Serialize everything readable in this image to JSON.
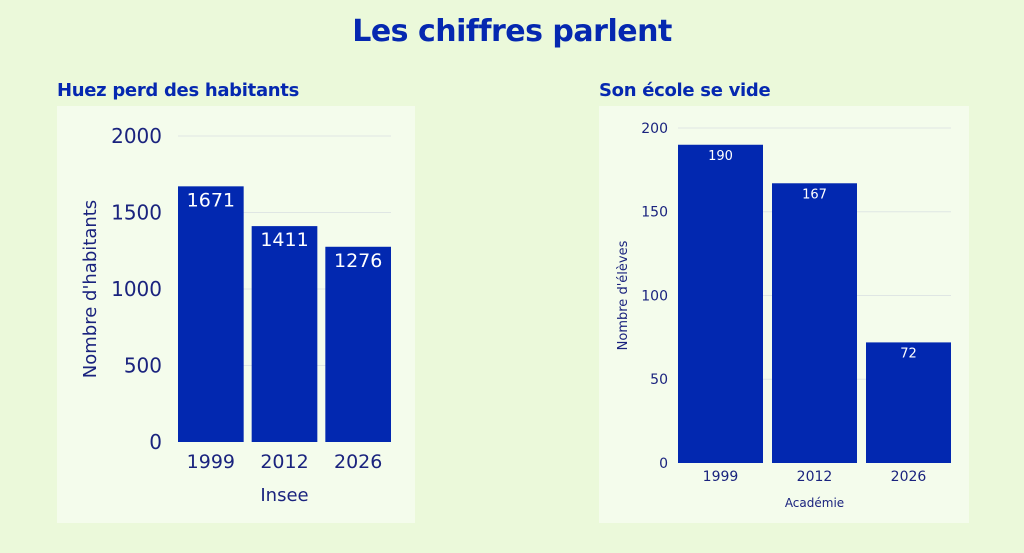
{
  "title": "Les chiffres parlent",
  "colors": {
    "bar": "#0228b0",
    "title": "#0528b0",
    "axis_text": "#1a237e",
    "panel": "#f4fcec",
    "background": "#ebf9da",
    "grid": "#dfe6e4"
  },
  "chart_data": [
    {
      "type": "bar",
      "title": "Huez perd des habitants",
      "categories": [
        "1999",
        "2012",
        "2026"
      ],
      "values": [
        1671,
        1411,
        1276
      ],
      "data_labels": [
        "1671",
        "1411",
        "1276"
      ],
      "xlabel": "Insee",
      "ylabel": "Nombre d'habitants",
      "ylim": [
        0,
        2000
      ],
      "yticks": [
        0,
        500,
        1000,
        1500,
        2000
      ],
      "ytick_labels": [
        "0",
        "500",
        "1000",
        "1500",
        "2000"
      ],
      "grid": true
    },
    {
      "type": "bar",
      "title": "Son école se vide",
      "categories": [
        "1999",
        "2012",
        "2026"
      ],
      "values": [
        190,
        167,
        72
      ],
      "data_labels": [
        "190",
        "167",
        "72"
      ],
      "xlabel": "Académie",
      "ylabel": "Nombre d'élèves",
      "ylim": [
        0,
        200
      ],
      "yticks": [
        0,
        50,
        100,
        150,
        200
      ],
      "ytick_labels": [
        "0",
        "50",
        "100",
        "150",
        "200"
      ],
      "grid": true
    }
  ]
}
